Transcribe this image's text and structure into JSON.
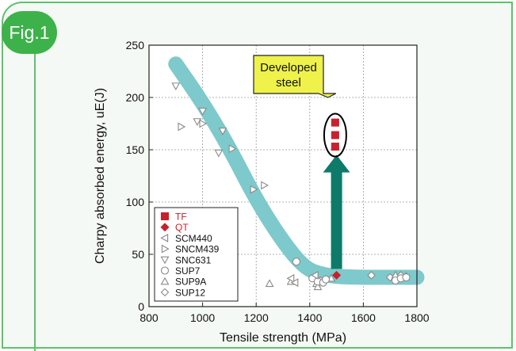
{
  "figure_label": "Fig.1",
  "colors": {
    "frame": "#5cc36a",
    "band": "#7ec9cb",
    "highlight": "#c8202d",
    "arrow": "#0e7a6a",
    "callout": "#eef24a",
    "grey_marker": "#8a8a8a"
  },
  "chart_data": {
    "type": "scatter",
    "title": "",
    "xlabel": "Tensile strength (MPa)",
    "ylabel": "Charpy absorbed energy, uE(J)",
    "xlim": [
      800,
      1800
    ],
    "ylim": [
      0,
      250
    ],
    "xticks": [
      800,
      1000,
      1200,
      1400,
      1600,
      1800
    ],
    "yticks": [
      0,
      50,
      100,
      150,
      200,
      250
    ],
    "grid": true,
    "legend_position": "bottom-left",
    "trend_band": [
      [
        900,
        232
      ],
      [
        1000,
        195
      ],
      [
        1100,
        152
      ],
      [
        1200,
        102
      ],
      [
        1300,
        62
      ],
      [
        1380,
        37
      ],
      [
        1450,
        30
      ],
      [
        1550,
        28
      ],
      [
        1800,
        28
      ]
    ],
    "series": [
      {
        "name": "TF",
        "marker": "square",
        "color": "#c8202d",
        "points": [
          [
            1495,
            176
          ],
          [
            1495,
            164
          ],
          [
            1495,
            153
          ]
        ]
      },
      {
        "name": "QT",
        "marker": "diamond",
        "color": "#c8202d",
        "points": [
          [
            1500,
            30
          ]
        ]
      },
      {
        "name": "SCM440",
        "marker": "triangle-left",
        "color": "#8a8a8a",
        "points": [
          [
            1330,
            27
          ],
          [
            1345,
            23
          ],
          [
            1420,
            30
          ]
        ]
      },
      {
        "name": "SNCM439",
        "marker": "triangle-right",
        "color": "#8a8a8a",
        "points": [
          [
            920,
            172
          ],
          [
            1000,
            175
          ],
          [
            1110,
            151
          ],
          [
            1190,
            112
          ],
          [
            1230,
            116
          ]
        ]
      },
      {
        "name": "SNC631",
        "marker": "triangle-down",
        "color": "#8a8a8a",
        "points": [
          [
            900,
            211
          ],
          [
            980,
            177
          ],
          [
            1000,
            187
          ],
          [
            1060,
            147
          ],
          [
            1075,
            168
          ]
        ]
      },
      {
        "name": "SUP7",
        "marker": "circle",
        "color": "#8a8a8a",
        "points": [
          [
            1350,
            43
          ],
          [
            1410,
            27
          ],
          [
            1430,
            24
          ],
          [
            1450,
            23
          ],
          [
            1460,
            26
          ],
          [
            1720,
            25
          ],
          [
            1740,
            27
          ],
          [
            1760,
            28
          ]
        ]
      },
      {
        "name": "SUP9A",
        "marker": "triangle-up",
        "color": "#8a8a8a",
        "points": [
          [
            1250,
            22
          ],
          [
            1330,
            24
          ],
          [
            1425,
            22
          ],
          [
            1430,
            19
          ],
          [
            1480,
            27
          ],
          [
            1720,
            30
          ]
        ]
      },
      {
        "name": "SUP12",
        "marker": "diamond-open",
        "color": "#8a8a8a",
        "points": [
          [
            1440,
            25
          ],
          [
            1630,
            30
          ],
          [
            1700,
            28
          ],
          [
            1740,
            30
          ],
          [
            1760,
            29
          ]
        ]
      }
    ],
    "annotation": {
      "lines": [
        "Developed",
        "steel"
      ],
      "arrow_from": [
        1500,
        30
      ],
      "arrow_to": [
        1500,
        145
      ],
      "ellipse_center": [
        1495,
        164
      ],
      "callout_anchor": [
        1468,
        200
      ]
    }
  }
}
